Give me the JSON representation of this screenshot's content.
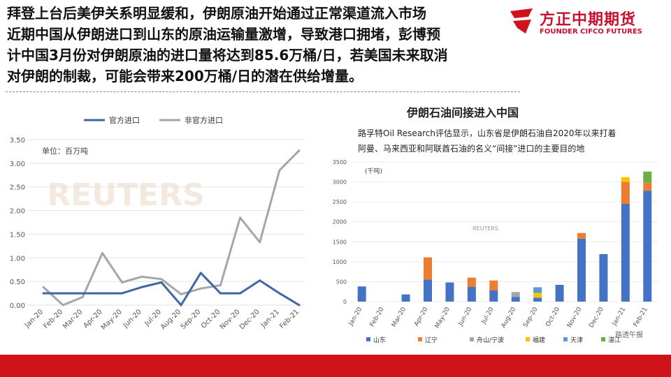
{
  "headline": {
    "lines": [
      "拜登上台后美伊关系明显缓和，伊朗原油开始通过正常渠道流入市场",
      "近期中国从伊朗进口到山东的原油运输量激增，导致港口拥堵，彭博预",
      "计中国3月份对伊朗原油的进口量将达到85.6万桶/日，若美国未来取消",
      "对伊朗的制裁，可能会带来200万桶/日的潜在供给增量。"
    ]
  },
  "logo": {
    "cn": "方正中期期货",
    "en": "FOUNDER CIFCO FUTURES"
  },
  "colors": {
    "brand_red": "#d0121b",
    "official": "#3e66a8",
    "unofficial": "#a6a6a6"
  },
  "chart_data": [
    {
      "type": "line",
      "unit_label": "单位：百万吨",
      "watermark": "REUTERS",
      "categories": [
        "Jan-20",
        "Feb-20",
        "Mar-20",
        "Apr-20",
        "May-20",
        "Jun-20",
        "Jul-20",
        "Aug-20",
        "Sep-20",
        "Oct-20",
        "Nov-20",
        "Dec-20",
        "Jan-21",
        "Feb-21"
      ],
      "ylim": [
        0,
        3.5
      ],
      "yticks": [
        "0.00",
        "0.50",
        "1.00",
        "1.50",
        "2.00",
        "2.50",
        "3.00",
        "3.50"
      ],
      "legend_position": "top",
      "series": [
        {
          "name": "官方进口",
          "color": "#3e66a8",
          "values": [
            0.25,
            0.25,
            0.25,
            0.25,
            0.25,
            0.38,
            0.48,
            0.0,
            0.68,
            0.25,
            0.25,
            0.52,
            0.25,
            0.0
          ]
        },
        {
          "name": "非官方进口",
          "color": "#a6a6a6",
          "values": [
            0.38,
            0.0,
            0.17,
            1.1,
            0.48,
            0.6,
            0.55,
            0.23,
            0.35,
            0.42,
            1.85,
            1.33,
            2.85,
            3.27
          ]
        }
      ]
    },
    {
      "type": "bar",
      "stacked": true,
      "title": "伊朗石油间接进入中国",
      "subtitle_lines": [
        "路孚特Oil Research评估显示，山东省是伊朗石油自2020年以来打着",
        "阿曼、马来西亚和阿联酋石油的名义“间接”进口的主要目的地"
      ],
      "unit_label": "(千吨)",
      "watermark": "REUTERS",
      "source_tag": "路透午报",
      "categories": [
        "Jan-20",
        "Feb-20",
        "Mar-20",
        "Apr-20",
        "May-20",
        "Jun-20",
        "Jul-20",
        "Aug-20",
        "Sep-20",
        "Oct-20",
        "Nov-20",
        "Dec-20",
        "Jan-21",
        "Feb-21"
      ],
      "ylim": [
        0,
        3500
      ],
      "yticks": [
        "0",
        "500",
        "1000",
        "1500",
        "2000",
        "2500",
        "3000",
        "3500"
      ],
      "legend_position": "bottom",
      "series": [
        {
          "name": "山东",
          "color": "#4472c4",
          "values": [
            380,
            0,
            180,
            550,
            480,
            370,
            280,
            120,
            100,
            420,
            1580,
            1190,
            2450,
            2780
          ]
        },
        {
          "name": "辽宁",
          "color": "#ed7d31",
          "values": [
            0,
            0,
            0,
            560,
            0,
            230,
            250,
            0,
            0,
            0,
            140,
            0,
            550,
            200
          ]
        },
        {
          "name": "舟山/宁波",
          "color": "#a5a5a5",
          "values": [
            0,
            0,
            0,
            0,
            0,
            0,
            0,
            120,
            0,
            0,
            0,
            0,
            0,
            0
          ]
        },
        {
          "name": "福建",
          "color": "#ffc000",
          "values": [
            0,
            0,
            0,
            0,
            0,
            0,
            0,
            0,
            120,
            0,
            0,
            0,
            120,
            0
          ]
        },
        {
          "name": "天津",
          "color": "#5b9bd5",
          "values": [
            0,
            0,
            0,
            0,
            0,
            0,
            0,
            0,
            140,
            0,
            0,
            0,
            0,
            0
          ]
        },
        {
          "name": "湛江",
          "color": "#70ad47",
          "values": [
            0,
            0,
            0,
            0,
            0,
            0,
            0,
            0,
            0,
            0,
            0,
            0,
            0,
            280
          ]
        }
      ]
    }
  ]
}
